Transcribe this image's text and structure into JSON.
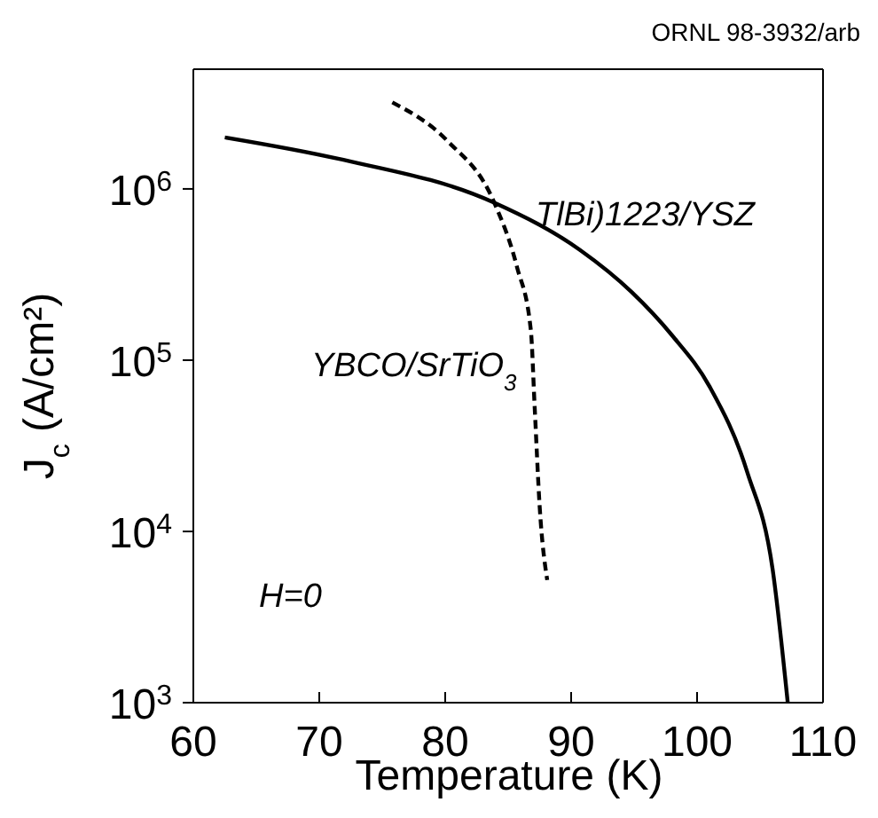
{
  "chart_data": {
    "type": "line",
    "xlabel": "Temperature (K)",
    "ylabel": "J$_{c}$ (A/cm²)",
    "log": true,
    "xlim": [
      60,
      110
    ],
    "xticks": [
      60,
      70,
      80,
      90,
      100,
      110
    ],
    "ylim": [
      1000,
      5000000
    ],
    "yticks": [
      {
        "value": 1000,
        "label": "10$^{3}$"
      },
      {
        "value": 10000,
        "label": "10$^{4}$"
      },
      {
        "value": 100000,
        "label": "10$^{5}$"
      },
      {
        "value": 1000000,
        "label": "10$^{6}$"
      }
    ],
    "marker": "none",
    "annotations": [
      "H=0",
      "ORNL 98-3932/arb"
    ],
    "series": [
      {
        "name": "TlBi)1223/YSZ",
        "color": "#000000",
        "line_style": "solid",
        "x": [
          62.5,
          71.5,
          83.9,
          90.7,
          94.8,
          98.0,
          101.0,
          104.0,
          106.0,
          107.2
        ],
        "values": [
          2000000,
          1500000,
          830000,
          440000,
          250000,
          140000,
          70000,
          22000,
          6000,
          1000
        ]
      },
      {
        "name": "YBCO/SrTiO$_{3}$",
        "color": "#000000",
        "line_style": "dashed",
        "x": [
          75.8,
          80.2,
          83.9,
          85.7,
          86.8,
          87.1,
          87.5,
          88.1
        ],
        "values": [
          3200000,
          1900000,
          830000,
          350000,
          150000,
          54000,
          14000,
          5200
        ]
      }
    ]
  }
}
